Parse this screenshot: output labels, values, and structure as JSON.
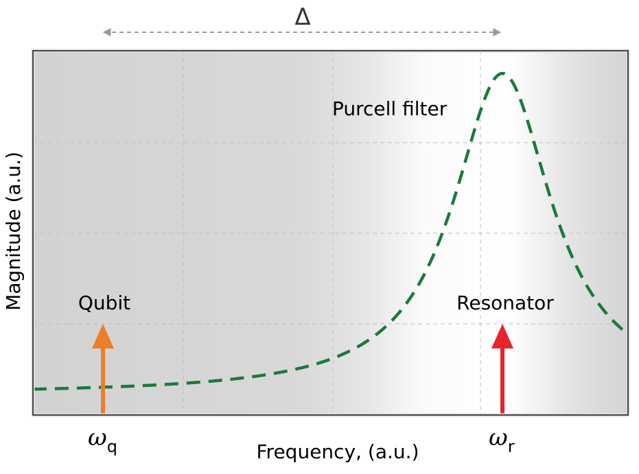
{
  "diagram": {
    "xlabel": "Frequency, (a.u.)",
    "ylabel": "Magnitude (a.u.)",
    "delta_symbol": "Δ",
    "filter_label": "Purcell filter",
    "qubit": {
      "label": "Qubit",
      "symbol": "ω",
      "subscript": "q",
      "color": "#ee7d2a"
    },
    "resonator": {
      "label": "Resonator",
      "symbol": "ω",
      "subscript": "r",
      "color": "#e8232b"
    },
    "filter_color": "#1a7a3a",
    "colors": {
      "background_dark": "#d3d3d3",
      "background_light": "#ffffff",
      "grid": "#bdbdbd",
      "frame": "#222222",
      "detuning_arrow": "#9a9a9a"
    }
  }
}
